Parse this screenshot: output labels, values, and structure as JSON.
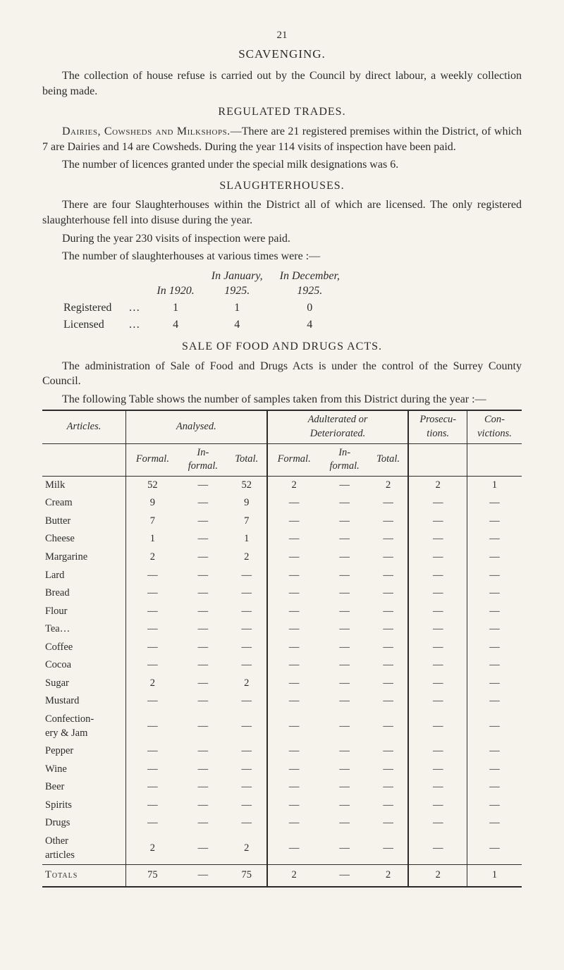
{
  "page_number": "21",
  "bg_color": "#f5f3ec",
  "text_color": "#2b2b2b",
  "sections": {
    "scavenging": {
      "title": "SCAVENGING.",
      "para": "The collection of house refuse is carried out by the Council by direct labour, a weekly collection being made."
    },
    "regulated": {
      "title": "REGULATED TRADES.",
      "dairies_lead": "Dairies, Cowsheds and Milkshops.",
      "dairies_body": "—There are 21 registered premises within the District, of which 7 are Dairies and 14 are Cowsheds. During the year 114 visits of inspection have been paid.",
      "licences": "The number of licences granted under the special milk desig­nations was 6."
    },
    "slaughter": {
      "title": "SLAUGHTERHOUSES.",
      "para1": "There are four Slaughterhouses within the District all of which are licensed. The only registered slaughterhouse fell into disuse during the year.",
      "para2": "During the year 230 visits of inspection were paid.",
      "para3": "The number of slaughterhouses at various times were :—",
      "col_headers": {
        "c0": "",
        "c1": "In 1920.",
        "c2": "In January,\n1925.",
        "c3": "In December,\n1925."
      },
      "rows": [
        {
          "label": "Registered",
          "dots": "…",
          "v1": "1",
          "v2": "1",
          "v3": "0"
        },
        {
          "label": "Licensed",
          "dots": "…",
          "v1": "4",
          "v2": "4",
          "v3": "4"
        }
      ]
    },
    "sale": {
      "title": "SALE OF FOOD AND DRUGS ACTS.",
      "para1": "The administration of Sale of Food and Drugs Acts is under the control of the Surrey County Council.",
      "para2": "The following Table shows the number of samples taken from this District during the year :—"
    }
  },
  "data_table": {
    "col_groups": [
      {
        "label": "Articles.",
        "span": 1
      },
      {
        "label": "Analysed.",
        "span": 3
      },
      {
        "label": "Adulterated or\nDeteriorated.",
        "span": 3
      },
      {
        "label": "Prosecu-\ntions.",
        "span": 1
      },
      {
        "label": "Con-\nvictions.",
        "span": 1
      }
    ],
    "sub_headers": [
      "",
      "Formal.",
      "In-\nformal.",
      "Total.",
      "Formal.",
      "In-\nformal.",
      "Total.",
      "",
      ""
    ],
    "rows": [
      {
        "label": "Milk",
        "cells": [
          "52",
          "—",
          "52",
          "2",
          "—",
          "2",
          "2",
          "1"
        ]
      },
      {
        "label": "Cream",
        "cells": [
          "9",
          "—",
          "9",
          "—",
          "—",
          "—",
          "—",
          "—"
        ]
      },
      {
        "label": "Butter",
        "cells": [
          "7",
          "—",
          "7",
          "—",
          "—",
          "—",
          "—",
          "—"
        ]
      },
      {
        "label": "Cheese",
        "cells": [
          "1",
          "—",
          "1",
          "—",
          "—",
          "—",
          "—",
          "—"
        ]
      },
      {
        "label": "Margarine",
        "cells": [
          "2",
          "—",
          "2",
          "—",
          "—",
          "—",
          "—",
          "—"
        ]
      },
      {
        "label": "Lard",
        "cells": [
          "—",
          "—",
          "—",
          "—",
          "—",
          "—",
          "—",
          "—"
        ]
      },
      {
        "label": "Bread",
        "cells": [
          "—",
          "—",
          "—",
          "—",
          "—",
          "—",
          "—",
          "—"
        ]
      },
      {
        "label": "Flour",
        "cells": [
          "—",
          "—",
          "—",
          "—",
          "—",
          "—",
          "—",
          "—"
        ]
      },
      {
        "label": "Tea…",
        "cells": [
          "—",
          "—",
          "—",
          "—",
          "—",
          "—",
          "—",
          "—"
        ]
      },
      {
        "label": "Coffee",
        "cells": [
          "—",
          "—",
          "—",
          "—",
          "—",
          "—",
          "—",
          "—"
        ]
      },
      {
        "label": "Cocoa",
        "cells": [
          "—",
          "—",
          "—",
          "—",
          "—",
          "—",
          "—",
          "—"
        ]
      },
      {
        "label": "Sugar",
        "cells": [
          "2",
          "—",
          "2",
          "—",
          "—",
          "—",
          "—",
          "—"
        ]
      },
      {
        "label": "Mustard",
        "cells": [
          "—",
          "—",
          "—",
          "—",
          "—",
          "—",
          "—",
          "—"
        ]
      },
      {
        "label": "Confection-\nery & Jam",
        "cells": [
          "—",
          "—",
          "—",
          "—",
          "—",
          "—",
          "—",
          "—"
        ]
      },
      {
        "label": "Pepper",
        "cells": [
          "—",
          "—",
          "—",
          "—",
          "—",
          "—",
          "—",
          "—"
        ]
      },
      {
        "label": "Wine",
        "cells": [
          "—",
          "—",
          "—",
          "—",
          "—",
          "—",
          "—",
          "—"
        ]
      },
      {
        "label": "Beer",
        "cells": [
          "—",
          "—",
          "—",
          "—",
          "—",
          "—",
          "—",
          "—"
        ]
      },
      {
        "label": "Spirits",
        "cells": [
          "—",
          "—",
          "—",
          "—",
          "—",
          "—",
          "—",
          "—"
        ]
      },
      {
        "label": "Drugs",
        "cells": [
          "—",
          "—",
          "—",
          "—",
          "—",
          "—",
          "—",
          "—"
        ]
      },
      {
        "label": "Other\narticles",
        "cells": [
          "2",
          "—",
          "2",
          "—",
          "—",
          "—",
          "—",
          "—"
        ]
      }
    ],
    "totals": {
      "label": "Totals",
      "cells": [
        "75",
        "—",
        "75",
        "2",
        "—",
        "2",
        "2",
        "1"
      ]
    }
  }
}
